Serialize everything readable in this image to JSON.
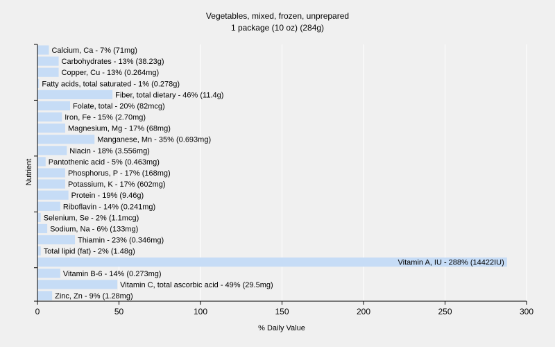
{
  "chart_data": {
    "type": "bar",
    "orientation": "horizontal",
    "title": "Vegetables, mixed, frozen, unprepared",
    "subtitle": "1 package (10 oz) (284g)",
    "xlabel": "% Daily Value",
    "ylabel": "Nutrient",
    "xlim": [
      0,
      300
    ],
    "xticks": [
      "0",
      "50",
      "100",
      "150",
      "200",
      "250",
      "300"
    ],
    "grid": "vertical",
    "colors": {
      "bar": "#c6dcf6",
      "grid": "#ffffff",
      "axis": "#000000",
      "plot_bg": "#f0f0f0"
    },
    "categories": [
      "Calcium, Ca",
      "Carbohydrates",
      "Copper, Cu",
      "Fatty acids, total saturated",
      "Fiber, total dietary",
      "Folate, total",
      "Iron, Fe",
      "Magnesium, Mg",
      "Manganese, Mn",
      "Niacin",
      "Pantothenic acid",
      "Phosphorus, P",
      "Potassium, K",
      "Protein",
      "Riboflavin",
      "Selenium, Se",
      "Sodium, Na",
      "Thiamin",
      "Total lipid (fat)",
      "Vitamin A, IU",
      "Vitamin B-6",
      "Vitamin C, total ascorbic acid",
      "Zinc, Zn"
    ],
    "values": [
      7,
      13,
      13,
      1,
      46,
      20,
      15,
      17,
      35,
      18,
      5,
      17,
      17,
      19,
      14,
      2,
      6,
      23,
      2,
      288,
      14,
      49,
      9
    ],
    "labels": [
      "Calcium, Ca - 7% (71mg)",
      "Carbohydrates - 13% (38.23g)",
      "Copper, Cu - 13% (0.264mg)",
      "Fatty acids, total saturated - 1% (0.278g)",
      "Fiber, total dietary - 46% (11.4g)",
      "Folate, total - 20% (82mcg)",
      "Iron, Fe - 15% (2.70mg)",
      "Magnesium, Mg - 17% (68mg)",
      "Manganese, Mn - 35% (0.693mg)",
      "Niacin - 18% (3.556mg)",
      "Pantothenic acid - 5% (0.463mg)",
      "Phosphorus, P - 17% (168mg)",
      "Potassium, K - 17% (602mg)",
      "Protein - 19% (9.46g)",
      "Riboflavin - 14% (0.241mg)",
      "Selenium, Se - 2% (1.1mcg)",
      "Sodium, Na - 6% (133mg)",
      "Thiamin - 23% (0.346mg)",
      "Total lipid (fat) - 2% (1.48g)",
      "Vitamin A, IU - 288% (14422IU)",
      "Vitamin B-6 - 14% (0.273mg)",
      "Vitamin C, total ascorbic acid - 49% (29.5mg)",
      "Zinc, Zn - 9% (1.28mg)"
    ]
  }
}
